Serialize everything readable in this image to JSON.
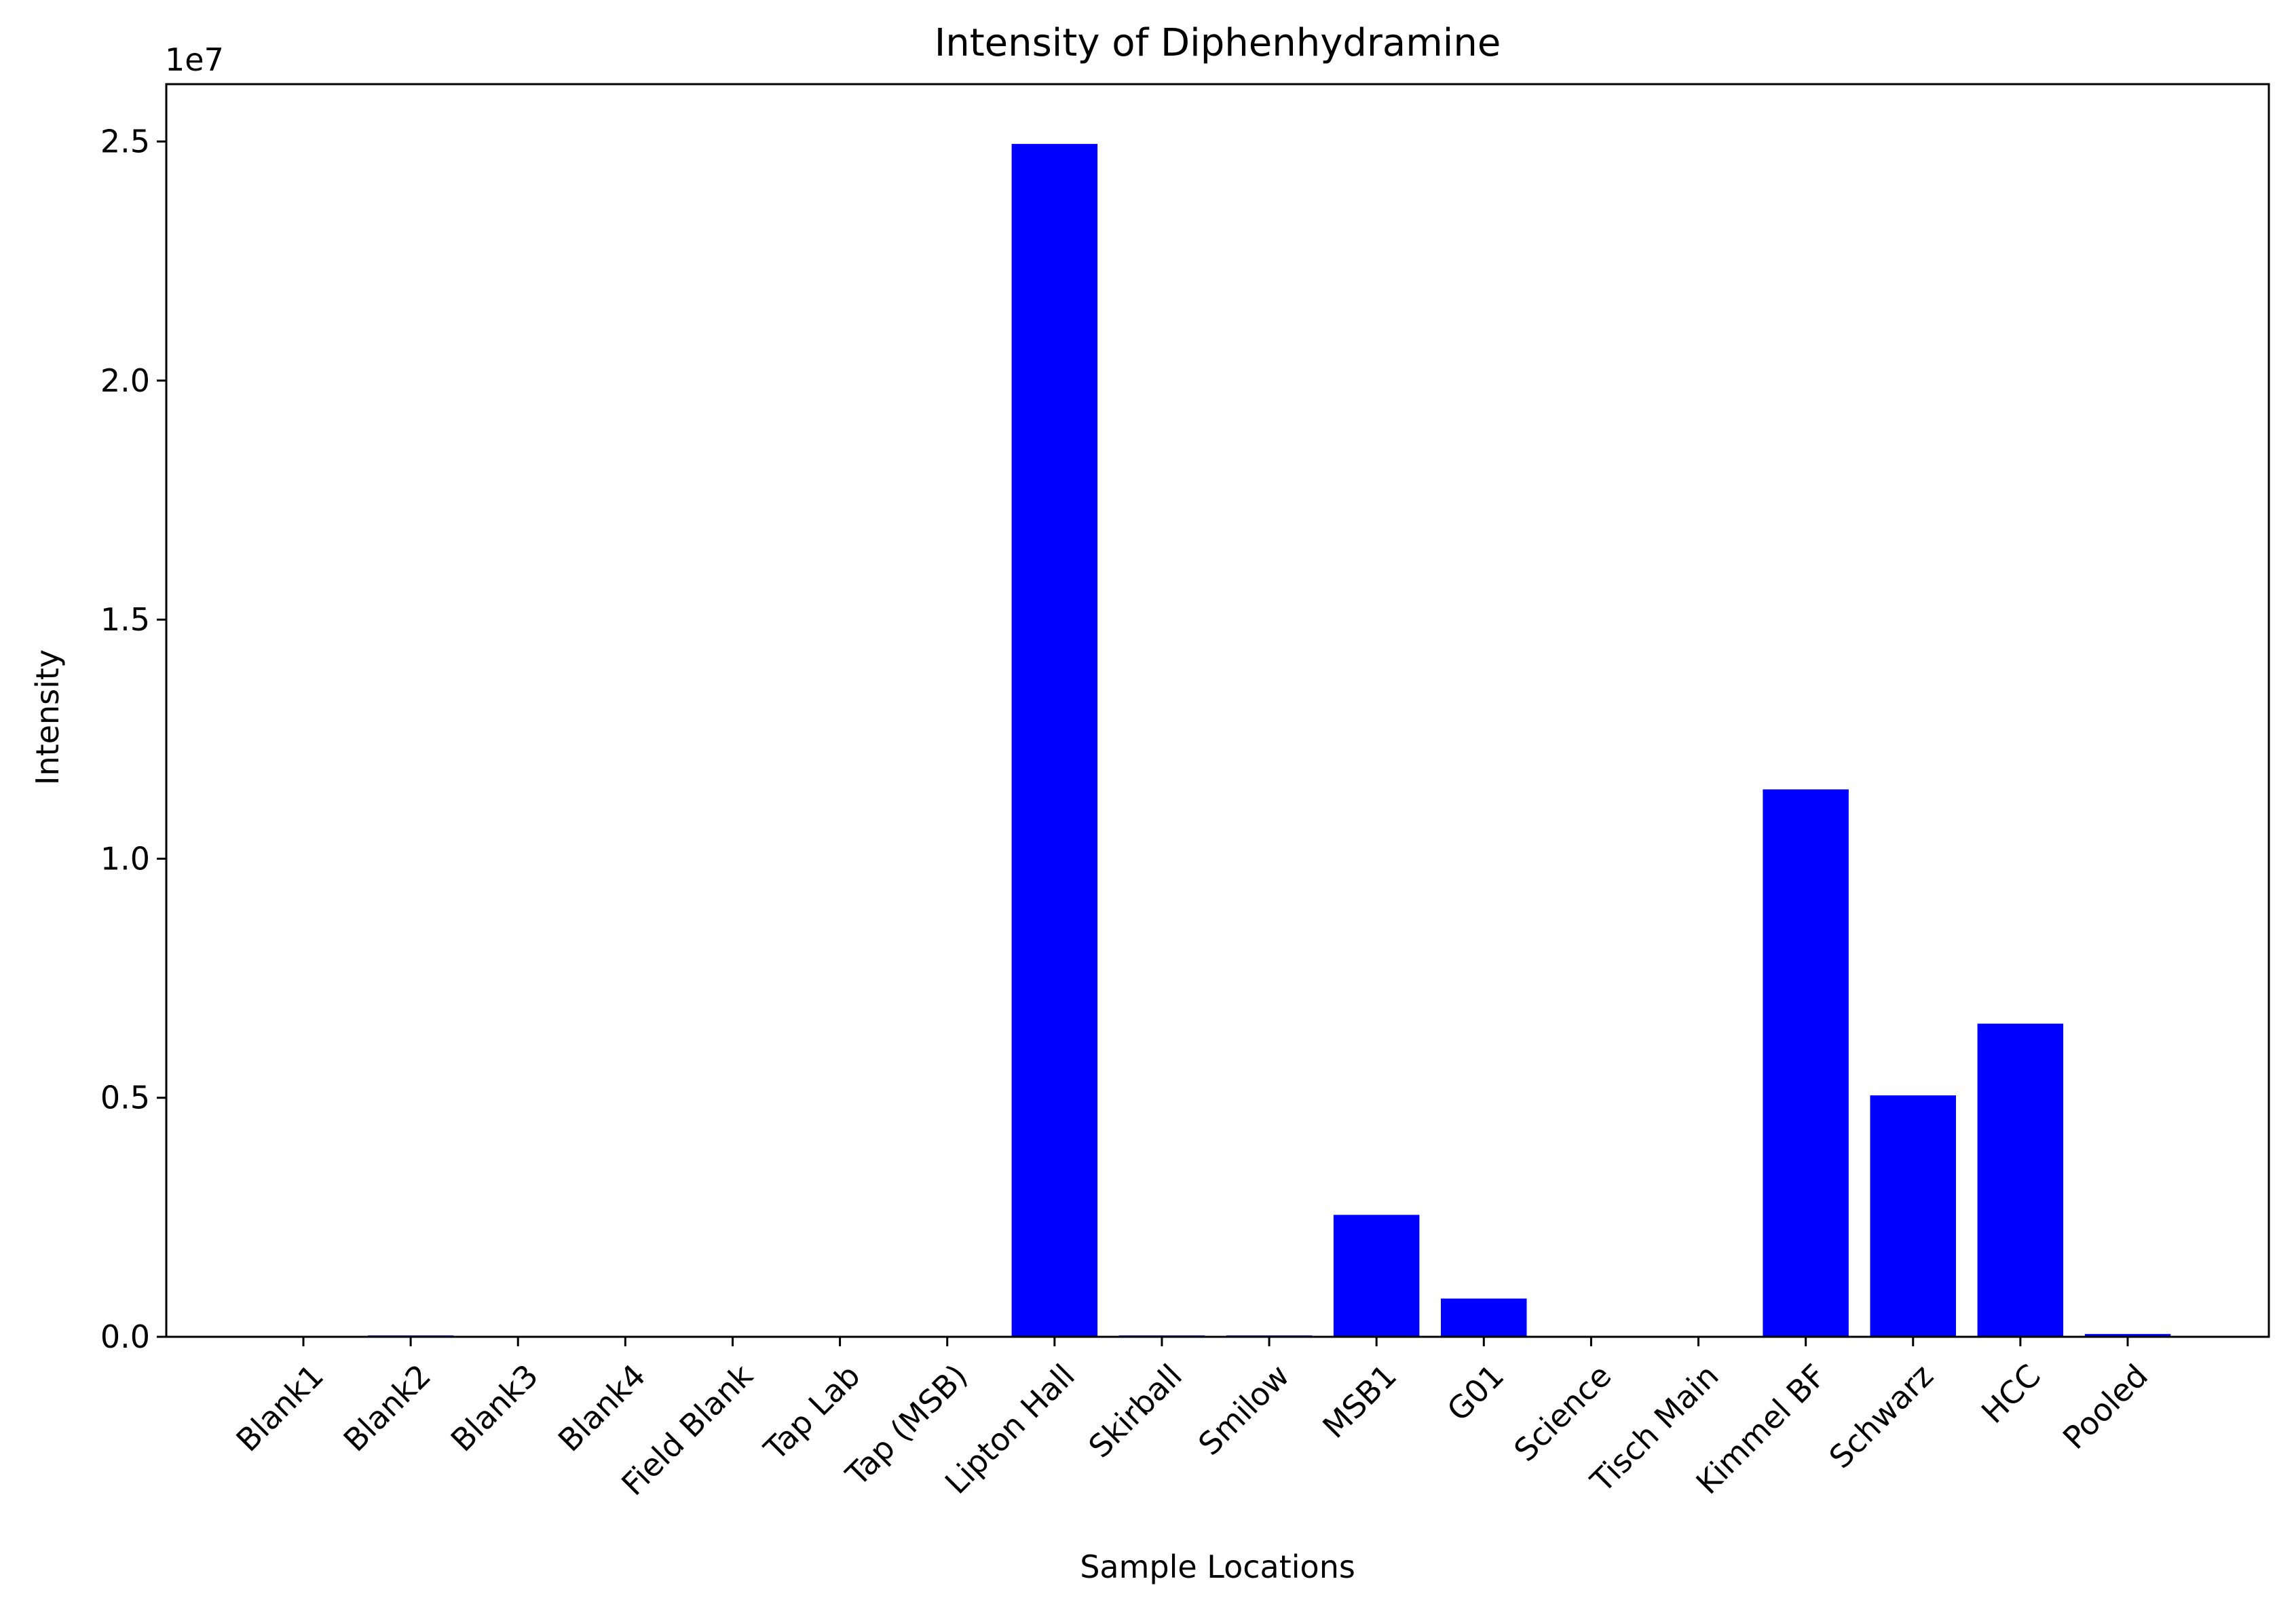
{
  "chart_data": {
    "type": "bar",
    "title": "Intensity of Diphenhydramine",
    "xlabel": "Sample Locations",
    "ylabel": "Intensity",
    "offset_label": "1e7",
    "categories": [
      "Blank1",
      "Blank2",
      "Blank3",
      "Blank4",
      "Field Blank",
      "Tap Lab",
      "Tap (MSB)",
      "Lipton Hall",
      "Skirball",
      "Smilow",
      "MSB1",
      "G01",
      "Science",
      "Tisch Main",
      "Kimmel BF",
      "Schwarz",
      "HCC",
      "Pooled"
    ],
    "values": [
      5000,
      30000,
      5000,
      5000,
      5000,
      5000,
      5000,
      24950000,
      30000,
      30000,
      2550000,
      800000,
      5000,
      5000,
      11450000,
      5050000,
      6550000,
      60000
    ],
    "ylim": [
      0,
      26200000
    ],
    "yticks": [
      0,
      5000000,
      10000000,
      15000000,
      20000000,
      25000000
    ],
    "ytick_labels": [
      "0.0",
      "0.5",
      "1.0",
      "1.5",
      "2.0",
      "2.5"
    ],
    "bar_color": "#0000ff",
    "grid": false,
    "legend": "none"
  }
}
